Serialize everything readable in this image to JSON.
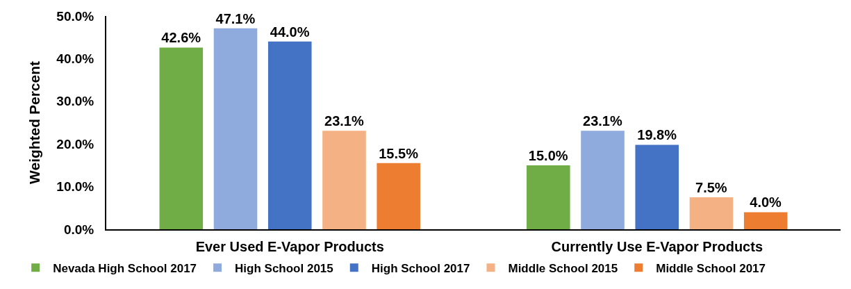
{
  "chart_data": {
    "type": "bar",
    "ylabel": "Weighted Percent",
    "categories": [
      "Ever Used E-Vapor Products",
      "Currently Use E-Vapor Products"
    ],
    "series": [
      {
        "name": "Nevada High School 2017",
        "color": "#70ad47",
        "values": [
          42.6,
          15.0
        ],
        "value_labels": [
          "42.6%",
          "15.0%"
        ]
      },
      {
        "name": "High School 2015",
        "color": "#8faadc",
        "values": [
          47.1,
          23.1
        ],
        "value_labels": [
          "47.1%",
          "23.1%"
        ]
      },
      {
        "name": "High School 2017",
        "color": "#4472c4",
        "values": [
          44.0,
          19.8
        ],
        "value_labels": [
          "44.0%",
          "19.8%"
        ]
      },
      {
        "name": "Middle School 2015",
        "color": "#f4b183",
        "values": [
          23.1,
          7.5
        ],
        "value_labels": [
          "23.1%",
          "7.5%"
        ]
      },
      {
        "name": "Middle School 2017",
        "color": "#ed7d31",
        "values": [
          15.5,
          4.0
        ],
        "value_labels": [
          "15.5%",
          "4.0%"
        ]
      }
    ],
    "ylim": [
      0,
      50
    ],
    "yticks": [
      {
        "value": 0,
        "label": "0.0%"
      },
      {
        "value": 10,
        "label": "10.0%"
      },
      {
        "value": 20,
        "label": "20.0%"
      },
      {
        "value": 30,
        "label": "30.0%"
      },
      {
        "value": 40,
        "label": "40.0%"
      },
      {
        "value": 50,
        "label": "50.0%"
      }
    ],
    "grid": false,
    "legend": "bottom"
  }
}
